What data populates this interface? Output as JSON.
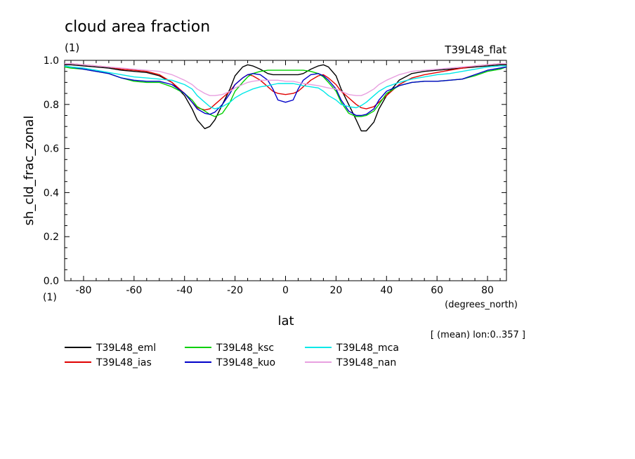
{
  "chart_data": {
    "type": "line",
    "title": "cloud area fraction",
    "units_label": "(1)",
    "run_label": "T39L48_flat",
    "xlabel": "lat",
    "x_units": "(degrees_north)",
    "ylabel": "sh_cld_frac_zonal",
    "y_units": "(1)",
    "footnote": "[ (mean) lon:0..357 ]",
    "xlim": [
      -87.5,
      87.5
    ],
    "ylim": [
      0,
      1
    ],
    "xticks": [
      "-80",
      "-60",
      "-40",
      "-20",
      "0",
      "20",
      "40",
      "60",
      "80"
    ],
    "yticks": [
      "0.0",
      "0.2",
      "0.4",
      "0.6",
      "0.8",
      "1.0"
    ],
    "legend_placement": "bottom",
    "x": [
      -87.5,
      -85,
      -80,
      -75,
      -70,
      -65,
      -60,
      -55,
      -50,
      -45,
      -40,
      -37,
      -35,
      -32,
      -30,
      -28,
      -25,
      -22,
      -20,
      -17,
      -15,
      -13,
      -10,
      -7,
      -5,
      -3,
      0,
      3,
      5,
      7,
      10,
      13,
      15,
      17,
      20,
      22,
      25,
      28,
      30,
      32,
      35,
      37,
      40,
      45,
      50,
      55,
      60,
      65,
      70,
      75,
      80,
      85,
      87.5
    ],
    "series": [
      {
        "name": "T39L48_eml",
        "color": "#000000",
        "values": [
          0.98,
          0.98,
          0.975,
          0.97,
          0.965,
          0.955,
          0.95,
          0.945,
          0.93,
          0.9,
          0.84,
          0.78,
          0.73,
          0.69,
          0.7,
          0.73,
          0.8,
          0.87,
          0.93,
          0.97,
          0.98,
          0.975,
          0.96,
          0.94,
          0.935,
          0.935,
          0.935,
          0.935,
          0.935,
          0.94,
          0.96,
          0.975,
          0.98,
          0.97,
          0.93,
          0.87,
          0.8,
          0.73,
          0.68,
          0.68,
          0.72,
          0.78,
          0.84,
          0.91,
          0.94,
          0.95,
          0.955,
          0.96,
          0.965,
          0.97,
          0.975,
          0.98,
          0.98
        ]
      },
      {
        "name": "T39L48_ias",
        "color": "#e00000",
        "values": [
          0.985,
          0.985,
          0.98,
          0.975,
          0.97,
          0.96,
          0.955,
          0.95,
          0.935,
          0.9,
          0.85,
          0.81,
          0.785,
          0.775,
          0.78,
          0.8,
          0.83,
          0.86,
          0.89,
          0.92,
          0.935,
          0.93,
          0.91,
          0.88,
          0.86,
          0.85,
          0.845,
          0.85,
          0.86,
          0.88,
          0.91,
          0.93,
          0.935,
          0.92,
          0.89,
          0.86,
          0.83,
          0.8,
          0.785,
          0.78,
          0.79,
          0.81,
          0.84,
          0.89,
          0.92,
          0.935,
          0.945,
          0.955,
          0.965,
          0.975,
          0.98,
          0.985,
          0.985
        ]
      },
      {
        "name": "T39L48_ksc",
        "color": "#00d000",
        "values": [
          0.97,
          0.965,
          0.96,
          0.95,
          0.94,
          0.92,
          0.905,
          0.9,
          0.9,
          0.88,
          0.85,
          0.82,
          0.79,
          0.77,
          0.755,
          0.745,
          0.76,
          0.81,
          0.86,
          0.9,
          0.925,
          0.94,
          0.95,
          0.955,
          0.955,
          0.955,
          0.955,
          0.955,
          0.955,
          0.955,
          0.95,
          0.94,
          0.925,
          0.9,
          0.86,
          0.81,
          0.76,
          0.745,
          0.745,
          0.75,
          0.77,
          0.8,
          0.85,
          0.885,
          0.9,
          0.905,
          0.905,
          0.91,
          0.915,
          0.93,
          0.95,
          0.96,
          0.97
        ]
      },
      {
        "name": "T39L48_kuo",
        "color": "#0000c8",
        "values": [
          0.975,
          0.97,
          0.96,
          0.95,
          0.94,
          0.92,
          0.91,
          0.905,
          0.905,
          0.89,
          0.85,
          0.81,
          0.78,
          0.76,
          0.755,
          0.765,
          0.8,
          0.85,
          0.89,
          0.92,
          0.935,
          0.94,
          0.935,
          0.91,
          0.87,
          0.82,
          0.81,
          0.82,
          0.87,
          0.91,
          0.935,
          0.94,
          0.93,
          0.91,
          0.87,
          0.82,
          0.77,
          0.75,
          0.75,
          0.755,
          0.78,
          0.82,
          0.86,
          0.885,
          0.9,
          0.905,
          0.905,
          0.91,
          0.915,
          0.935,
          0.955,
          0.965,
          0.97
        ]
      },
      {
        "name": "T39L48_mca",
        "color": "#00e8e8",
        "values": [
          0.975,
          0.97,
          0.965,
          0.955,
          0.945,
          0.935,
          0.925,
          0.92,
          0.915,
          0.91,
          0.89,
          0.87,
          0.84,
          0.81,
          0.79,
          0.78,
          0.79,
          0.81,
          0.83,
          0.85,
          0.86,
          0.87,
          0.88,
          0.885,
          0.89,
          0.895,
          0.895,
          0.895,
          0.89,
          0.885,
          0.88,
          0.875,
          0.86,
          0.84,
          0.82,
          0.8,
          0.79,
          0.785,
          0.795,
          0.81,
          0.84,
          0.86,
          0.88,
          0.9,
          0.915,
          0.925,
          0.935,
          0.94,
          0.95,
          0.96,
          0.97,
          0.975,
          0.975
        ]
      },
      {
        "name": "T39L48_nan",
        "color": "#e8a0e0",
        "values": [
          0.985,
          0.985,
          0.98,
          0.975,
          0.97,
          0.965,
          0.96,
          0.955,
          0.95,
          0.935,
          0.91,
          0.89,
          0.87,
          0.85,
          0.84,
          0.84,
          0.845,
          0.86,
          0.875,
          0.89,
          0.9,
          0.905,
          0.91,
          0.91,
          0.91,
          0.91,
          0.905,
          0.905,
          0.9,
          0.895,
          0.89,
          0.885,
          0.88,
          0.875,
          0.87,
          0.86,
          0.845,
          0.84,
          0.84,
          0.85,
          0.87,
          0.89,
          0.91,
          0.935,
          0.95,
          0.955,
          0.96,
          0.965,
          0.97,
          0.975,
          0.98,
          0.985,
          0.985
        ]
      }
    ]
  }
}
